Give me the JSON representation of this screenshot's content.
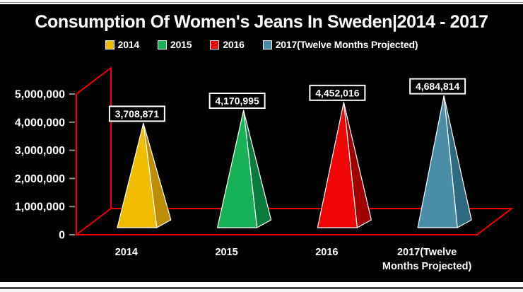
{
  "page": {
    "background": "#000000",
    "border_band_color": "#ffffff"
  },
  "chart_data": {
    "type": "bar",
    "subtype": "3d-pyramid",
    "title": "Consumption Of Women's Jeans In Sweden|2014 - 2017",
    "xlabel": "",
    "ylabel": "",
    "ylim": [
      0,
      5000000
    ],
    "ytick_step": 1000000,
    "ytick_labels": [
      "0",
      "1,000,000",
      "2,000,000",
      "3,000,000",
      "4,000,000",
      "5,000,000"
    ],
    "grid": false,
    "legend_position": "top",
    "axis_color": "#f00000",
    "tick_color": "#909090",
    "text_color": "#ffffff",
    "categories": [
      "2014",
      "2015",
      "2016",
      "2017(Twelve Months Projected)"
    ],
    "series": [
      {
        "name": "2014",
        "value": 3708871,
        "data_label": "3,708,871",
        "color": "#f0bc00",
        "color_dark": "#bd8d07",
        "category_lines": [
          "2014"
        ]
      },
      {
        "name": "2015",
        "value": 4170995,
        "data_label": "4,170,995",
        "color": "#17b257",
        "color_dark": "#0b7b3d",
        "category_lines": [
          "2015"
        ]
      },
      {
        "name": "2016",
        "value": 4452016,
        "data_label": "4,452,016",
        "color": "#f10505",
        "color_dark": "#a00000",
        "category_lines": [
          "2016"
        ]
      },
      {
        "name": "2017(Twelve Months Projected)",
        "value": 4684814,
        "data_label": "4,684,814",
        "color": "#4a8da6",
        "color_dark": "#2e6b82",
        "category_lines": [
          "2017(Twelve",
          "Months Projected)"
        ]
      }
    ]
  }
}
